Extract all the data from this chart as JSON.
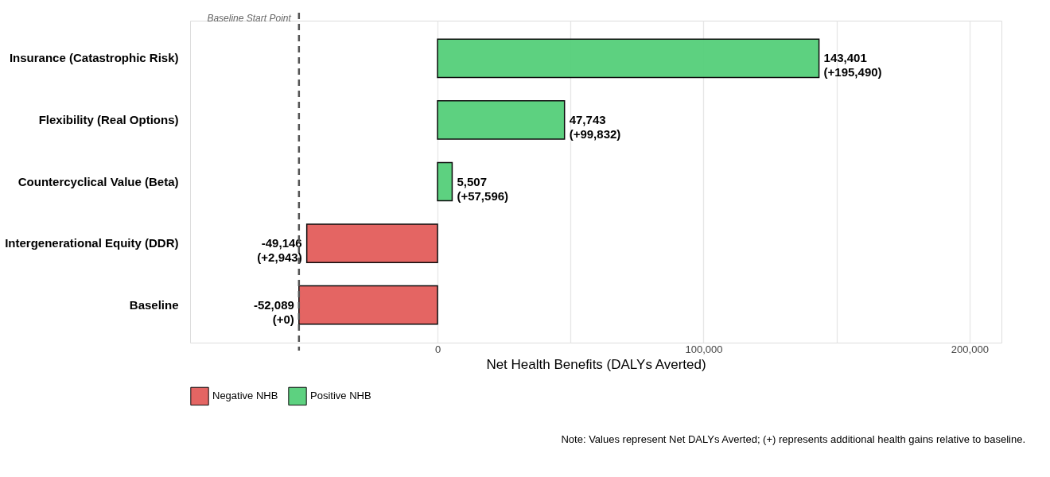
{
  "chart_data": {
    "type": "bar",
    "orientation": "horizontal",
    "categories": [
      "Insurance (Catastrophic Risk)",
      "Flexibility (Real Options)",
      "Countercyclical Value (Beta)",
      "Intergenerational Equity (DDR)",
      "Baseline"
    ],
    "series": [
      {
        "name": "Negative NHB",
        "color": "#e35d5b",
        "values": [
          null,
          null,
          null,
          -49146,
          -52089
        ],
        "value_labels": [
          null,
          null,
          null,
          "-49,146\n(+2,943)",
          "-52,089\n(+0)"
        ]
      },
      {
        "name": "Positive NHB",
        "color": "#55cf7a",
        "values": [
          143401,
          47743,
          5507,
          null,
          null
        ],
        "value_labels": [
          "143,401\n(+195,490)",
          "47,743\n(+99,832)",
          "5,507\n(+57,596)",
          null,
          null
        ]
      }
    ],
    "xlabel": "Net Health Benefits (DALYs Averted)",
    "xlim": [
      -93000,
      212000
    ],
    "xticks": [
      {
        "value": 0,
        "label": "0"
      },
      {
        "value": 50000,
        "label": null
      },
      {
        "value": 100000,
        "label": "100,000"
      },
      {
        "value": 150000,
        "label": null
      },
      {
        "value": 200000,
        "label": "200,000"
      }
    ],
    "grid": "x",
    "legend": "bottom",
    "ref_lines": [
      {
        "axis": "x",
        "value": -52089,
        "label": "Baseline Start Point",
        "line_style": "dashed",
        "color": "#555555"
      }
    ],
    "annotations": [
      "Note: Values represent Net DALYs Averted; (+) represents additional health gains relative to baseline."
    ]
  }
}
